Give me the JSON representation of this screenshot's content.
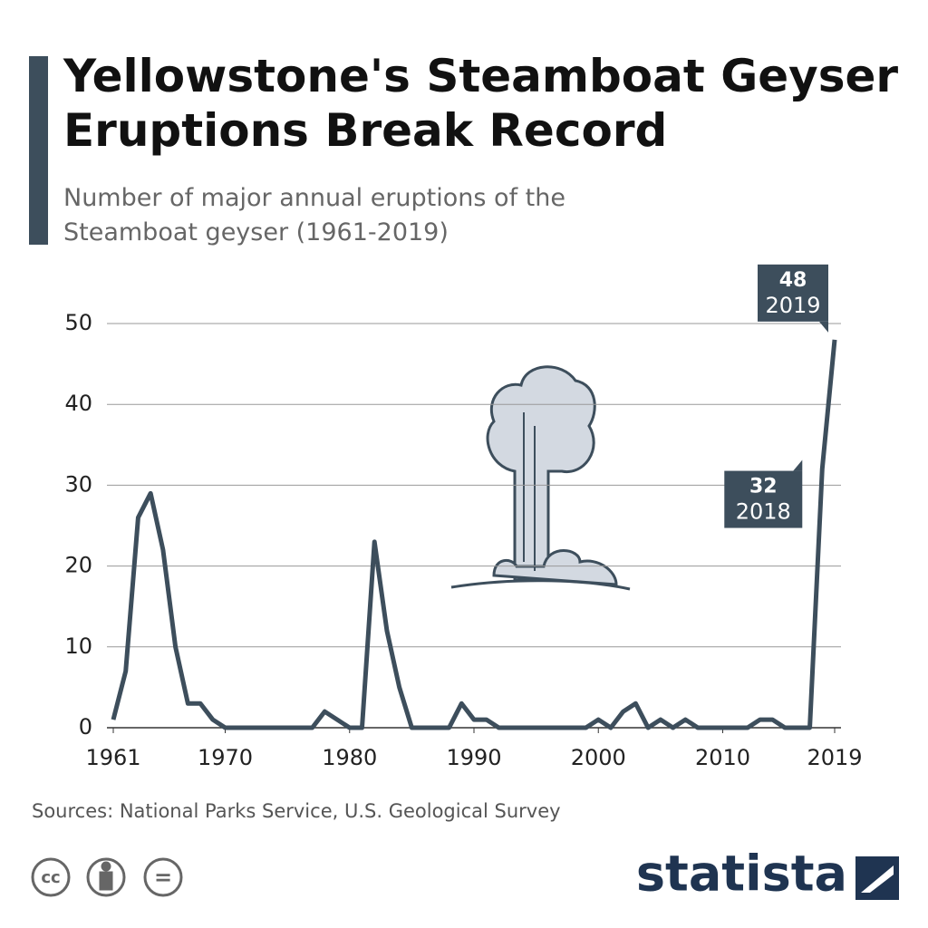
{
  "chart_data": {
    "type": "line",
    "title": "Yellowstone's Steamboat Geyser Eruptions Break Record",
    "subtitle": "Number of major annual eruptions of the Steamboat geyser (1961-2019)",
    "x": [
      1961,
      1962,
      1963,
      1964,
      1965,
      1966,
      1967,
      1968,
      1969,
      1970,
      1971,
      1972,
      1973,
      1974,
      1975,
      1976,
      1977,
      1978,
      1979,
      1980,
      1981,
      1982,
      1983,
      1984,
      1985,
      1986,
      1987,
      1988,
      1989,
      1990,
      1991,
      1992,
      1993,
      1994,
      1995,
      1996,
      1997,
      1998,
      1999,
      2000,
      2001,
      2002,
      2003,
      2004,
      2005,
      2006,
      2007,
      2008,
      2009,
      2010,
      2011,
      2012,
      2013,
      2014,
      2015,
      2016,
      2017,
      2018,
      2019
    ],
    "values": [
      1,
      7,
      26,
      29,
      22,
      10,
      3,
      3,
      1,
      0,
      0,
      0,
      0,
      0,
      0,
      0,
      0,
      2,
      1,
      0,
      0,
      23,
      12,
      5,
      0,
      0,
      0,
      0,
      3,
      1,
      1,
      0,
      0,
      0,
      0,
      0,
      0,
      0,
      0,
      1,
      0,
      2,
      3,
      0,
      1,
      0,
      1,
      0,
      0,
      0,
      0,
      0,
      1,
      1,
      0,
      0,
      0,
      32,
      48
    ],
    "color": "#3d4e5c",
    "xlim": [
      1961,
      2019
    ],
    "xticks": [
      1961,
      1970,
      1980,
      1990,
      2000,
      2010,
      2019
    ],
    "ylim": [
      0,
      50
    ],
    "yticks": [
      0,
      10,
      20,
      30,
      40,
      50
    ],
    "grid": true,
    "source": "Sources: National Parks Service, U.S. Geological Survey",
    "brand": "statista",
    "license_icons": [
      "cc",
      "="
    ]
  }
}
